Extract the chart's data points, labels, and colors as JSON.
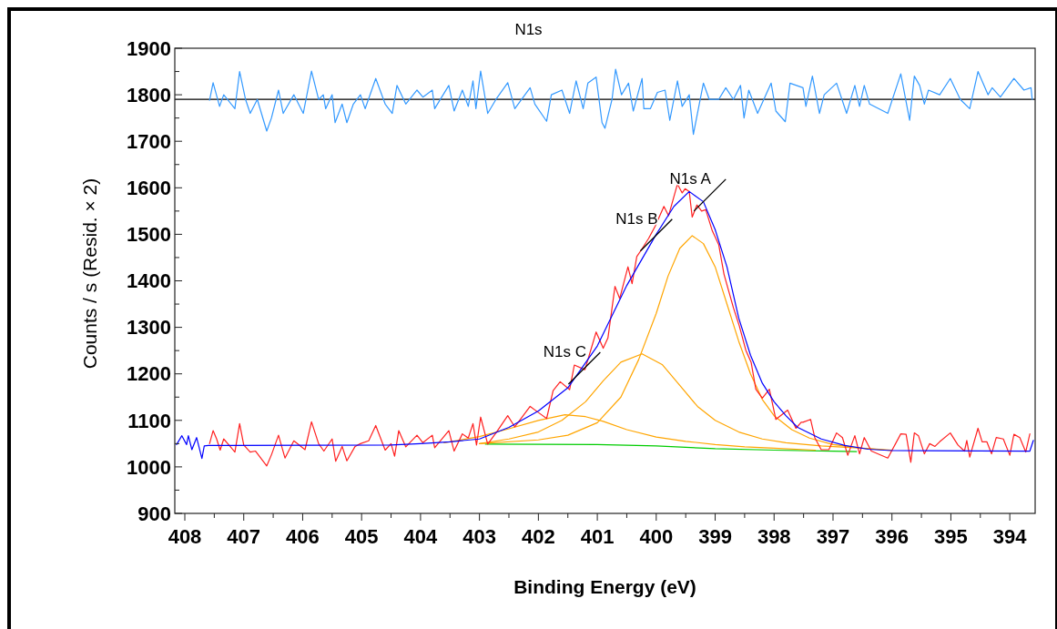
{
  "chart_data": {
    "type": "line",
    "title": "N1s",
    "xlabel": "Binding Energy (eV)",
    "ylabel": "Counts / s  (Resid. × 2)",
    "xlim": [
      408.17,
      393.57
    ],
    "ylim": [
      900,
      1900
    ],
    "xticks": [
      408,
      {
        "value": 407.5,
        "label": null
      },
      407,
      {
        "value": 406.5,
        "label": null
      },
      406,
      {
        "value": 405.5,
        "label": null
      },
      405,
      {
        "value": 404.5,
        "label": null
      },
      404,
      {
        "value": 403.5,
        "label": null
      },
      403,
      {
        "value": 402.5,
        "label": null
      },
      402,
      {
        "value": 401.5,
        "label": null
      },
      401,
      {
        "value": 400.5,
        "label": null
      },
      400,
      {
        "value": 399.5,
        "label": null
      },
      399,
      {
        "value": 398.5,
        "label": null
      },
      398,
      {
        "value": 397.5,
        "label": null
      },
      397,
      {
        "value": 396.5,
        "label": null
      },
      396,
      {
        "value": 395.5,
        "label": null
      },
      395,
      {
        "value": 394.5,
        "label": null
      },
      394
    ],
    "yticks": [
      900,
      {
        "value": 950,
        "label": null
      },
      1000,
      {
        "value": 1050,
        "label": null
      },
      1100,
      {
        "value": 1150,
        "label": null
      },
      1200,
      {
        "value": 1250,
        "label": null
      },
      1300,
      {
        "value": 1350,
        "label": null
      },
      1400,
      {
        "value": 1450,
        "label": null
      },
      1500,
      {
        "value": 1550,
        "label": null
      },
      1600,
      {
        "value": 1650,
        "label": null
      },
      1700,
      {
        "value": 1750,
        "label": null
      },
      1800,
      {
        "value": 1850,
        "label": null
      },
      1900
    ],
    "grid": false,
    "marker": "none",
    "line_style": "solid",
    "ref_lines": [
      {
        "axis": "y",
        "value": 1790,
        "color": "#000000"
      }
    ],
    "annotations": [
      {
        "text": "N1s A",
        "x": 399.36,
        "y": 1550
      },
      {
        "text": "N1s B",
        "x": 400.27,
        "y": 1464
      },
      {
        "text": "N1s C",
        "x": 401.49,
        "y": 1178
      }
    ],
    "series": [
      {
        "color": "#00cc00",
        "x": [
          402.9,
          401.0,
          400.0,
          399.5,
          399.0,
          398.0,
          397.0,
          396.6
        ],
        "values": [
          1049,
          1048,
          1045,
          1042,
          1039,
          1036,
          1034,
          1033
        ]
      },
      {
        "color": "#ffa500",
        "x": [
          403.0,
          402.0,
          401.5,
          401.0,
          400.6,
          400.3,
          400.0,
          399.8,
          399.6,
          399.39,
          399.2,
          399.0,
          398.8,
          398.6,
          398.4,
          398.2,
          398.0,
          397.7,
          397.4,
          397.0,
          396.5,
          396.0
        ],
        "values": [
          1050,
          1058,
          1068,
          1095,
          1150,
          1230,
          1330,
          1410,
          1470,
          1497,
          1480,
          1430,
          1350,
          1270,
          1200,
          1145,
          1110,
          1080,
          1062,
          1048,
          1040,
          1035
        ]
      },
      {
        "color": "#ffa500",
        "x": [
          403.0,
          402.5,
          402.0,
          401.6,
          401.2,
          400.9,
          400.6,
          400.24,
          399.9,
          399.6,
          399.3,
          399.0,
          398.6,
          398.2,
          397.8,
          397.2,
          396.5,
          396.0
        ],
        "values": [
          1050,
          1060,
          1075,
          1100,
          1140,
          1185,
          1225,
          1243,
          1220,
          1175,
          1130,
          1100,
          1075,
          1060,
          1052,
          1045,
          1040,
          1036
        ]
      },
      {
        "color": "#ffa500",
        "x": [
          403.6,
          403.0,
          402.5,
          402.0,
          401.55,
          401.2,
          400.9,
          400.5,
          400.0,
          399.5,
          399.0,
          398.5,
          398.0,
          397.3
        ],
        "values": [
          1052,
          1065,
          1082,
          1100,
          1112,
          1108,
          1098,
          1080,
          1064,
          1055,
          1048,
          1043,
          1040,
          1036
        ]
      },
      {
        "color": "#ff2020",
        "x": [
          407.58,
          407.52,
          407.46,
          407.4,
          407.34,
          407.15,
          407.07,
          407.0,
          406.89,
          406.8,
          406.61,
          406.53,
          406.41,
          406.3,
          406.15,
          405.96,
          405.85,
          405.73,
          405.64,
          405.5,
          405.44,
          405.33,
          405.25,
          405.11,
          405.02,
          404.88,
          404.76,
          404.6,
          404.5,
          404.44,
          404.37,
          404.25,
          404.06,
          403.96,
          403.8,
          403.76,
          403.52,
          403.43,
          403.29,
          403.19,
          403.11,
          403.05,
          402.98,
          402.86,
          402.72,
          402.52,
          402.4,
          402.14,
          401.98,
          401.86,
          401.75,
          401.63,
          401.47,
          401.39,
          401.21,
          401.02,
          400.9,
          400.82,
          400.7,
          400.62,
          400.48,
          400.41,
          400.33,
          400.24,
          400.13,
          400.02,
          399.87,
          399.79,
          399.64,
          399.56,
          399.51,
          399.44,
          399.39,
          399.31,
          399.23,
          399.16,
          399.05,
          398.94,
          398.85,
          398.69,
          398.59,
          398.48,
          398.39,
          398.31,
          398.2,
          398.08,
          397.97,
          397.77,
          397.63,
          397.54,
          397.51,
          397.38,
          397.31,
          397.2,
          397.07,
          396.94,
          396.84,
          396.75,
          396.63,
          396.55,
          396.47,
          396.35,
          396.07,
          395.85,
          395.76,
          395.68,
          395.62,
          395.55,
          395.45,
          395.36,
          395.27,
          395.19,
          395.01,
          394.88,
          394.77,
          394.73,
          394.68,
          394.54,
          394.47,
          394.39,
          394.31,
          394.23,
          394.11,
          394.0,
          393.93,
          393.83,
          393.73,
          393.66
        ],
        "values": [
          1050,
          1078,
          1060,
          1036,
          1060,
          1032,
          1093,
          1047,
          1032,
          1034,
          1002,
          1026,
          1068,
          1019,
          1056,
          1037,
          1097,
          1050,
          1034,
          1060,
          1012,
          1044,
          1013,
          1044,
          1050,
          1056,
          1089,
          1036,
          1050,
          1023,
          1078,
          1043,
          1068,
          1052,
          1068,
          1041,
          1078,
          1034,
          1071,
          1062,
          1093,
          1047,
          1107,
          1049,
          1073,
          1110,
          1086,
          1130,
          1115,
          1104,
          1164,
          1183,
          1166,
          1219,
          1209,
          1290,
          1255,
          1277,
          1388,
          1362,
          1430,
          1394,
          1452,
          1469,
          1491,
          1517,
          1560,
          1540,
          1608,
          1589,
          1598,
          1592,
          1537,
          1563,
          1550,
          1553,
          1508,
          1478,
          1414,
          1342,
          1303,
          1251,
          1225,
          1167,
          1148,
          1167,
          1102,
          1122,
          1083,
          1096,
          1096,
          1102,
          1063,
          1037,
          1037,
          1073,
          1063,
          1025,
          1067,
          1028,
          1063,
          1034,
          1019,
          1071,
          1070,
          1010,
          1073,
          1067,
          1028,
          1050,
          1044,
          1054,
          1073,
          1047,
          1034,
          1057,
          1021,
          1083,
          1054,
          1054,
          1028,
          1063,
          1060,
          1025,
          1070,
          1063,
          1032,
          1071
        ]
      },
      {
        "color": "#0000ff",
        "x": [
          408.14,
          408.05,
          407.97,
          407.94,
          407.88,
          407.8,
          407.71,
          407.67,
          407.6,
          404.5,
          404.0,
          403.5,
          403.0,
          402.5,
          402.0,
          401.5,
          401.0,
          400.5,
          400.0,
          399.7,
          399.44,
          399.2,
          399.0,
          398.8,
          398.6,
          398.4,
          398.2,
          398.0,
          397.8,
          397.6,
          397.2,
          396.8,
          396.4,
          396.0,
          393.66,
          393.6
        ],
        "values": [
          1048,
          1067,
          1048,
          1067,
          1037,
          1063,
          1018,
          1045,
          1046,
          1047,
          1050,
          1054,
          1060,
          1085,
          1120,
          1170,
          1260,
          1390,
          1500,
          1560,
          1592,
          1570,
          1510,
          1430,
          1320,
          1240,
          1180,
          1140,
          1110,
          1085,
          1060,
          1046,
          1038,
          1035,
          1034,
          1057
        ]
      },
      {
        "color": "#3399ff",
        "x": [
          407.58,
          407.52,
          407.41,
          407.34,
          407.15,
          407.07,
          406.97,
          406.89,
          406.77,
          406.61,
          406.53,
          406.41,
          406.33,
          406.15,
          405.99,
          405.85,
          405.73,
          405.65,
          405.61,
          405.5,
          405.45,
          405.33,
          405.25,
          405.14,
          405.02,
          404.94,
          404.76,
          404.6,
          404.48,
          404.4,
          404.25,
          404.06,
          403.96,
          403.8,
          403.76,
          403.52,
          403.43,
          403.29,
          403.19,
          403.11,
          403.06,
          402.98,
          402.86,
          402.72,
          402.52,
          402.4,
          402.14,
          402.06,
          401.86,
          401.78,
          401.6,
          401.47,
          401.36,
          401.24,
          401.16,
          401.02,
          400.92,
          400.87,
          400.75,
          400.69,
          400.59,
          400.47,
          400.39,
          400.24,
          400.21,
          400.1,
          399.98,
          399.85,
          399.77,
          399.64,
          399.56,
          399.44,
          399.37,
          399.2,
          399.1,
          398.94,
          398.82,
          398.69,
          398.57,
          398.51,
          398.43,
          398.28,
          398.05,
          397.97,
          397.81,
          397.73,
          397.51,
          397.46,
          397.35,
          397.23,
          397.15,
          396.94,
          396.77,
          396.63,
          396.55,
          396.47,
          396.38,
          396.07,
          395.85,
          395.7,
          395.62,
          395.53,
          395.45,
          395.38,
          395.19,
          395.01,
          394.84,
          394.68,
          394.54,
          394.37,
          394.3,
          394.16,
          393.93,
          393.76,
          393.64,
          393.62
        ],
        "values": [
          1788,
          1826,
          1775,
          1800,
          1770,
          1850,
          1790,
          1760,
          1790,
          1722,
          1750,
          1810,
          1760,
          1800,
          1760,
          1851,
          1790,
          1800,
          1770,
          1800,
          1740,
          1780,
          1740,
          1780,
          1800,
          1770,
          1835,
          1780,
          1760,
          1820,
          1780,
          1810,
          1795,
          1810,
          1770,
          1820,
          1765,
          1810,
          1775,
          1830,
          1770,
          1851,
          1760,
          1790,
          1826,
          1770,
          1815,
          1780,
          1743,
          1800,
          1810,
          1760,
          1830,
          1770,
          1825,
          1838,
          1740,
          1728,
          1790,
          1855,
          1800,
          1825,
          1765,
          1835,
          1770,
          1770,
          1805,
          1810,
          1745,
          1830,
          1775,
          1800,
          1715,
          1825,
          1790,
          1790,
          1815,
          1790,
          1820,
          1750,
          1810,
          1760,
          1825,
          1765,
          1742,
          1825,
          1815,
          1775,
          1840,
          1760,
          1800,
          1825,
          1760,
          1820,
          1775,
          1820,
          1780,
          1760,
          1845,
          1745,
          1840,
          1820,
          1780,
          1810,
          1800,
          1835,
          1790,
          1770,
          1850,
          1800,
          1815,
          1795,
          1835,
          1810,
          1815,
          1790
        ]
      }
    ]
  }
}
